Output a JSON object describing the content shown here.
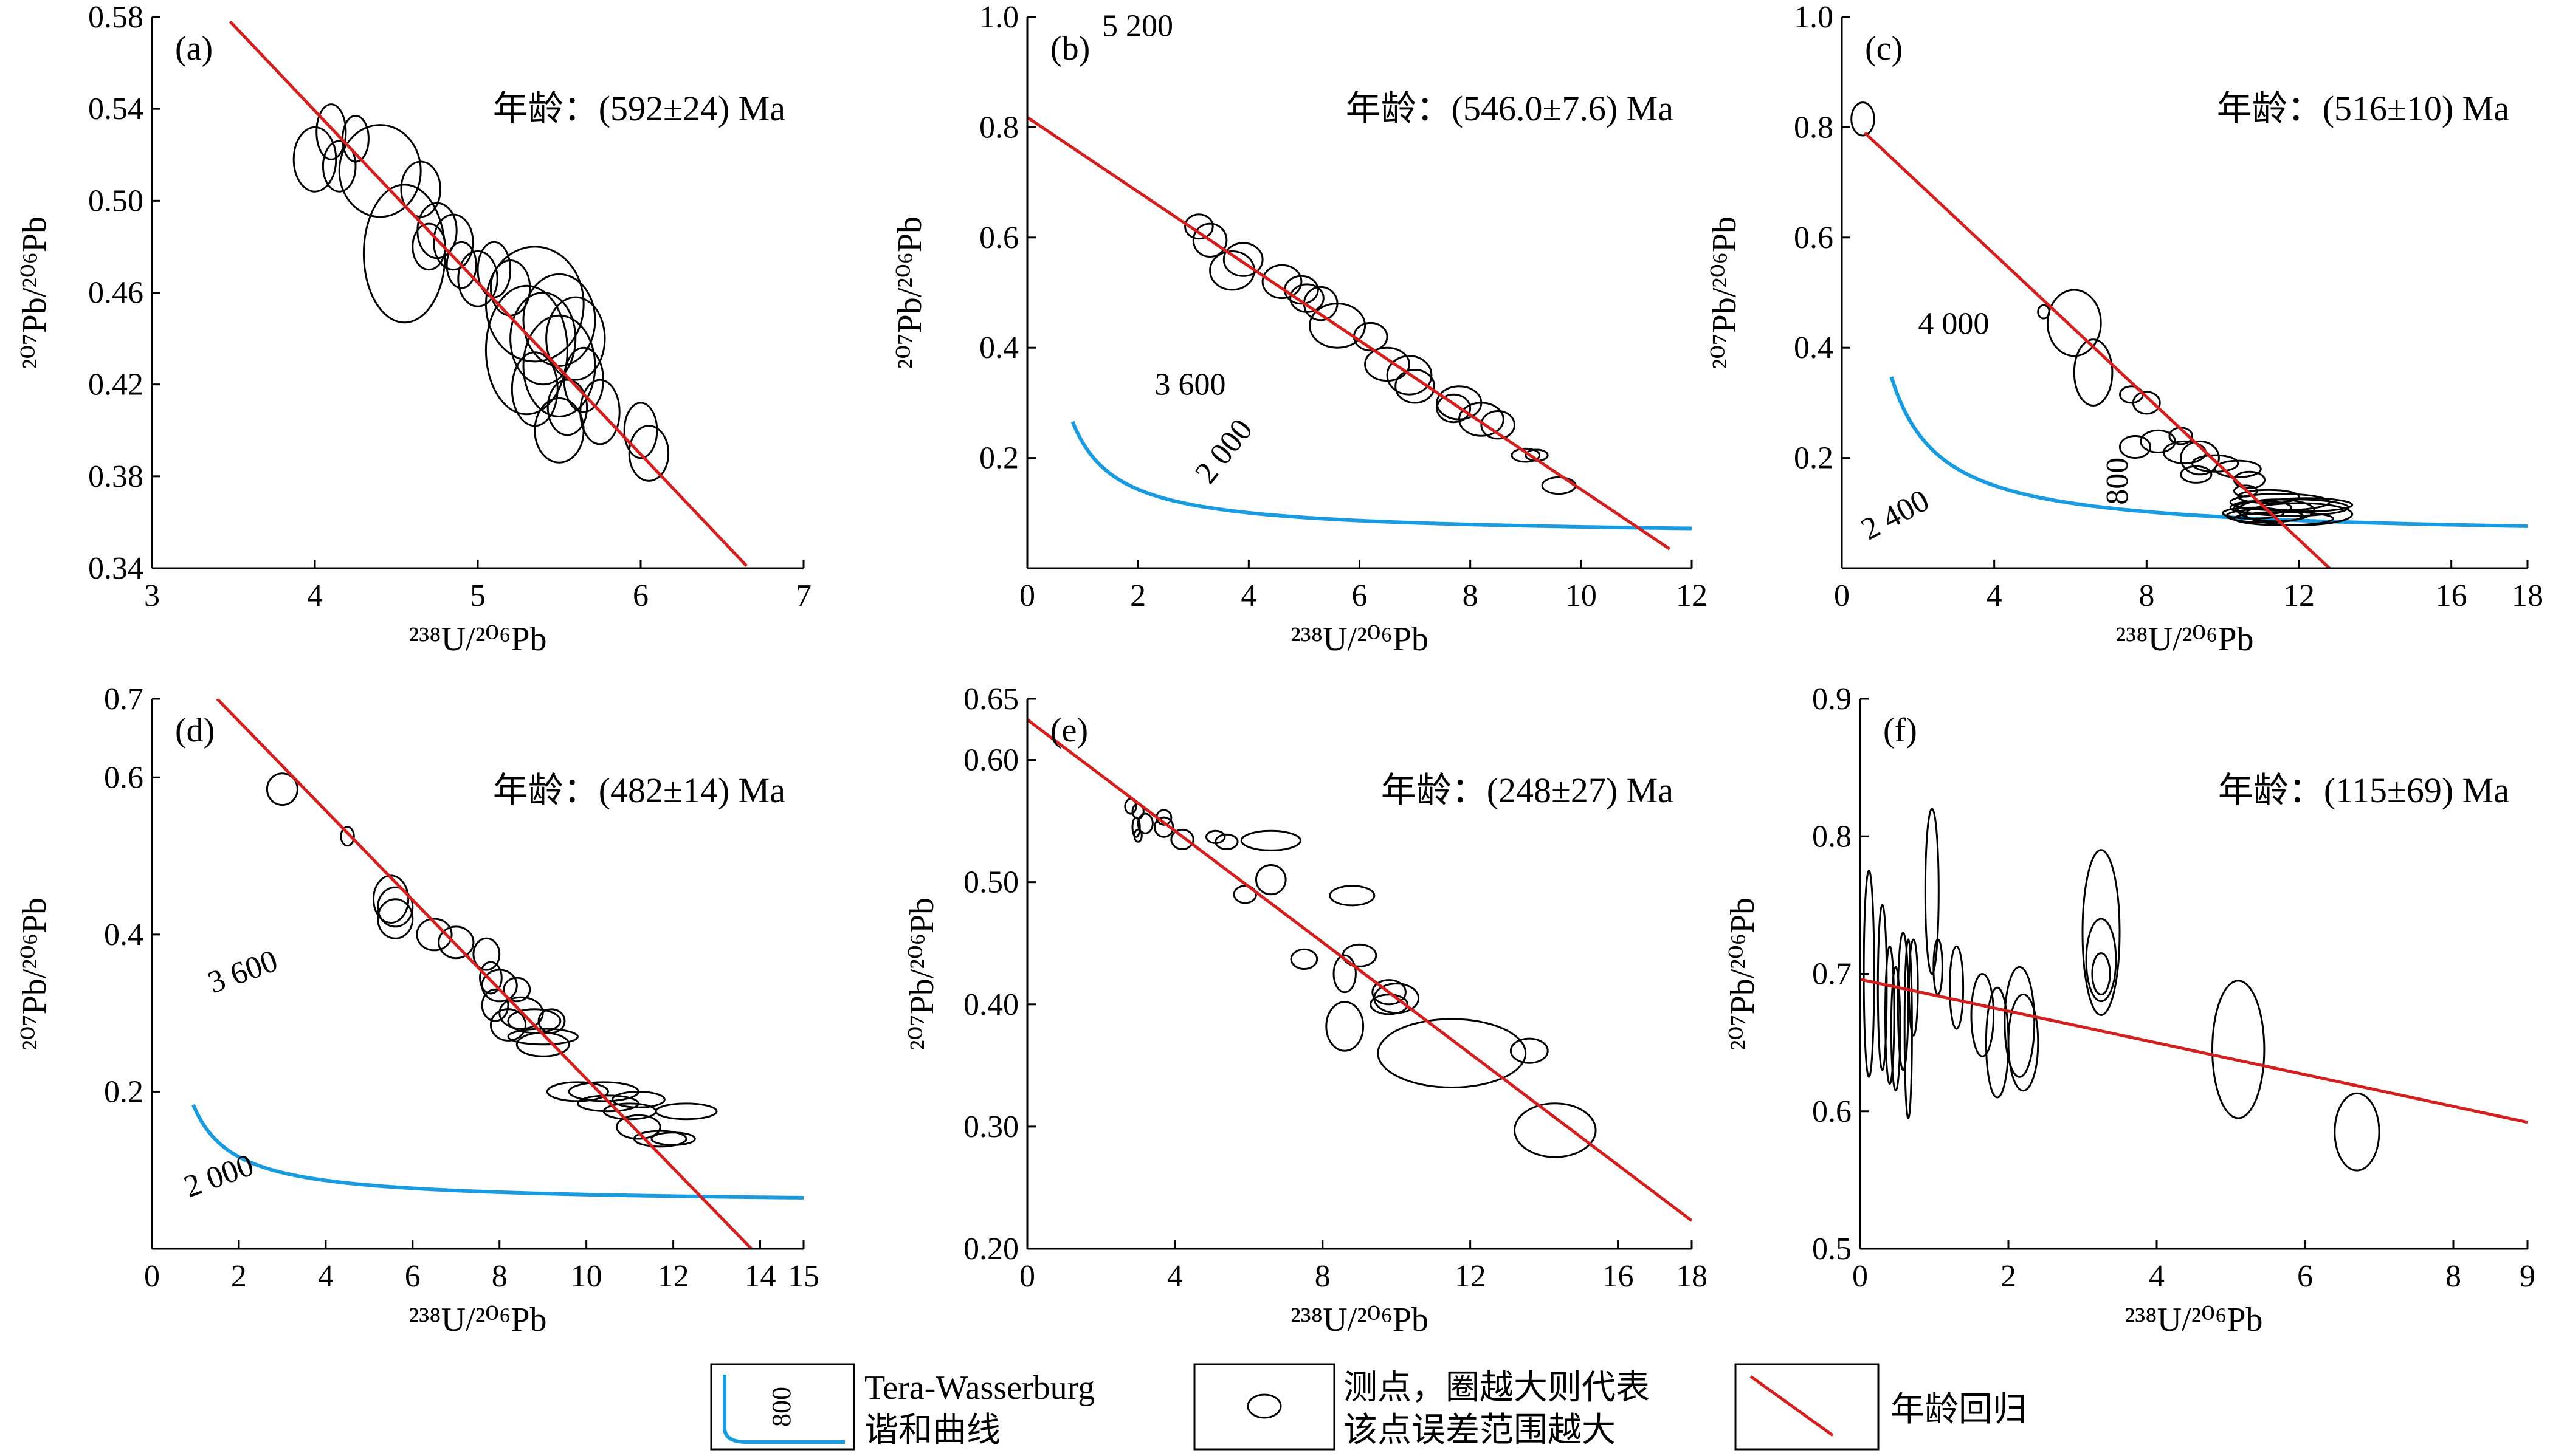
{
  "colors": {
    "concordia": "#1a9be0",
    "regression": "#d21f1f",
    "ellipse": "#000000"
  },
  "legend": {
    "concordia_line1": "Tera-Wasserburg",
    "concordia_line2": "谐和曲线",
    "concordia_sample_label": "800",
    "points_line1": "测点，圈越大则代表",
    "points_line2": "该点误差范围越大",
    "regression_label": "年龄回归"
  },
  "chart_data": [
    {
      "panel": "(a)",
      "type": "scatter",
      "age_label": "年龄：(592±24) Ma",
      "xlabel": "²³⁸U/²⁰⁶Pb",
      "ylabel": "²⁰⁷Pb/²⁰⁶Pb",
      "xlim": [
        3,
        7
      ],
      "ylim": [
        0.34,
        0.58
      ],
      "xticks": [
        "3",
        "4",
        "5",
        "6",
        "7"
      ],
      "yticks": [
        "0.34",
        "0.38",
        "0.42",
        "0.46",
        "0.50",
        "0.54",
        "0.58"
      ],
      "regression": [
        [
          3.48,
          0.578
        ],
        [
          6.65,
          0.341
        ]
      ],
      "concordia": null,
      "ellipses": [
        [
          4.1,
          0.53,
          0.09,
          0.012
        ],
        [
          4.25,
          0.527,
          0.08,
          0.01
        ],
        [
          4.0,
          0.518,
          0.13,
          0.014
        ],
        [
          4.15,
          0.515,
          0.1,
          0.011
        ],
        [
          4.4,
          0.513,
          0.25,
          0.02
        ],
        [
          4.65,
          0.505,
          0.12,
          0.012
        ],
        [
          4.75,
          0.487,
          0.12,
          0.012
        ],
        [
          4.55,
          0.477,
          0.25,
          0.03
        ],
        [
          4.7,
          0.48,
          0.1,
          0.01
        ],
        [
          4.85,
          0.482,
          0.12,
          0.012
        ],
        [
          4.9,
          0.472,
          0.09,
          0.01
        ],
        [
          5.0,
          0.466,
          0.12,
          0.012
        ],
        [
          5.1,
          0.47,
          0.1,
          0.012
        ],
        [
          5.2,
          0.462,
          0.12,
          0.012
        ],
        [
          5.35,
          0.455,
          0.3,
          0.025
        ],
        [
          5.5,
          0.448,
          0.22,
          0.02
        ],
        [
          5.3,
          0.435,
          0.25,
          0.028
        ],
        [
          5.4,
          0.44,
          0.2,
          0.02
        ],
        [
          5.5,
          0.428,
          0.22,
          0.022
        ],
        [
          5.6,
          0.44,
          0.18,
          0.018
        ],
        [
          5.65,
          0.422,
          0.12,
          0.014
        ],
        [
          5.35,
          0.418,
          0.14,
          0.016
        ],
        [
          5.55,
          0.41,
          0.12,
          0.012
        ],
        [
          5.75,
          0.408,
          0.12,
          0.014
        ],
        [
          5.5,
          0.4,
          0.15,
          0.014
        ],
        [
          6.0,
          0.4,
          0.1,
          0.012
        ],
        [
          6.05,
          0.39,
          0.12,
          0.012
        ]
      ],
      "concordia_labels": []
    },
    {
      "panel": "(b)",
      "type": "scatter",
      "age_label": "年龄：(546.0±7.6) Ma",
      "xlabel": "²³⁸U/²⁰⁶Pb",
      "ylabel": "²⁰⁷Pb/²⁰⁶Pb",
      "xlim": [
        0,
        12
      ],
      "ylim": [
        0.0,
        1.0
      ],
      "xticks": [
        "0",
        "2",
        "4",
        "6",
        "8",
        "10",
        "12"
      ],
      "yticks": [
        "0.2",
        "0.4",
        "0.6",
        "0.8",
        "1.0"
      ],
      "regression": [
        [
          0,
          0.818
        ],
        [
          11.6,
          0.035
        ]
      ],
      "concordia": {
        "asymptote": 0.058,
        "k": 0.17,
        "x_start": 0.82
      },
      "ellipses": [
        [
          3.1,
          0.62,
          0.25,
          0.022
        ],
        [
          3.3,
          0.595,
          0.3,
          0.03
        ],
        [
          3.9,
          0.56,
          0.35,
          0.03
        ],
        [
          3.7,
          0.54,
          0.4,
          0.035
        ],
        [
          4.6,
          0.52,
          0.35,
          0.03
        ],
        [
          4.95,
          0.505,
          0.3,
          0.025
        ],
        [
          5.05,
          0.49,
          0.3,
          0.025
        ],
        [
          5.3,
          0.48,
          0.3,
          0.03
        ],
        [
          5.6,
          0.44,
          0.5,
          0.04
        ],
        [
          6.2,
          0.42,
          0.3,
          0.025
        ],
        [
          6.5,
          0.37,
          0.4,
          0.03
        ],
        [
          6.9,
          0.35,
          0.4,
          0.035
        ],
        [
          7.0,
          0.33,
          0.35,
          0.03
        ],
        [
          7.8,
          0.3,
          0.4,
          0.03
        ],
        [
          7.7,
          0.29,
          0.3,
          0.025
        ],
        [
          8.2,
          0.27,
          0.4,
          0.03
        ],
        [
          8.5,
          0.26,
          0.3,
          0.025
        ],
        [
          9.0,
          0.205,
          0.25,
          0.012
        ],
        [
          9.2,
          0.205,
          0.2,
          0.01
        ],
        [
          9.6,
          0.15,
          0.3,
          0.015
        ]
      ],
      "concordia_labels": [
        {
          "text": "5 200",
          "x": 1.35,
          "y": 0.965,
          "angle": 0
        },
        {
          "text": "3 600",
          "x": 2.3,
          "y": 0.315,
          "angle": 0
        },
        {
          "text": "2 000",
          "x": 3.3,
          "y": 0.15,
          "angle": -52
        }
      ]
    },
    {
      "panel": "(c)",
      "type": "scatter",
      "age_label": "年龄：(516±10) Ma",
      "xlabel": "²³⁸U/²⁰⁶Pb",
      "ylabel": "²⁰⁷Pb/²⁰⁶Pb",
      "xlim": [
        0,
        18
      ],
      "ylim": [
        0.0,
        1.0
      ],
      "xticks": [
        "0",
        "4",
        "8",
        "12",
        "16",
        "18"
      ],
      "yticks": [
        "0.2",
        "0.4",
        "0.6",
        "0.8",
        "1.0"
      ],
      "regression": [
        [
          0.6,
          0.79
        ],
        [
          12.8,
          0.0
        ]
      ],
      "concordia": {
        "asymptote": 0.055,
        "k": 0.38,
        "x_start": 1.3
      },
      "ellipses": [
        [
          0.55,
          0.815,
          0.3,
          0.03
        ],
        [
          5.3,
          0.465,
          0.15,
          0.012
        ],
        [
          6.1,
          0.445,
          0.7,
          0.06
        ],
        [
          6.6,
          0.355,
          0.5,
          0.06
        ],
        [
          7.6,
          0.315,
          0.3,
          0.015
        ],
        [
          8.0,
          0.3,
          0.35,
          0.02
        ],
        [
          7.7,
          0.22,
          0.4,
          0.02
        ],
        [
          8.3,
          0.23,
          0.45,
          0.02
        ],
        [
          8.9,
          0.24,
          0.3,
          0.015
        ],
        [
          9.0,
          0.21,
          0.55,
          0.02
        ],
        [
          9.4,
          0.2,
          0.5,
          0.03
        ],
        [
          9.3,
          0.17,
          0.4,
          0.015
        ],
        [
          9.8,
          0.19,
          0.6,
          0.015
        ],
        [
          10.4,
          0.18,
          0.6,
          0.015
        ],
        [
          10.7,
          0.16,
          0.4,
          0.015
        ],
        [
          10.6,
          0.14,
          0.3,
          0.01
        ],
        [
          11.2,
          0.13,
          0.8,
          0.012
        ],
        [
          11.5,
          0.12,
          1.3,
          0.015
        ],
        [
          11.0,
          0.11,
          0.8,
          0.012
        ],
        [
          11.8,
          0.11,
          1.5,
          0.015
        ],
        [
          12.2,
          0.115,
          1.2,
          0.012
        ],
        [
          11.1,
          0.095,
          1.0,
          0.012
        ],
        [
          11.6,
          0.09,
          1.3,
          0.012
        ],
        [
          10.8,
          0.1,
          0.8,
          0.01
        ],
        [
          11.4,
          0.105,
          1.0,
          0.02
        ],
        [
          12.0,
          0.098,
          1.4,
          0.02
        ]
      ],
      "concordia_labels": [
        {
          "text": "4 000",
          "x": 2.0,
          "y": 0.425,
          "angle": 0
        },
        {
          "text": "2 400",
          "x": 0.7,
          "y": 0.05,
          "angle": -28
        },
        {
          "text": "800",
          "x": 7.5,
          "y": 0.115,
          "angle": -90
        }
      ]
    },
    {
      "panel": "(d)",
      "type": "scatter",
      "age_label": "年龄：(482±14) Ma",
      "xlabel": "²³⁸U/²⁰⁶Pb",
      "ylabel": "²⁰⁷Pb/²⁰⁶Pb",
      "xlim": [
        0,
        15
      ],
      "ylim": [
        0.0,
        0.7
      ],
      "xticks": [
        "0",
        "2",
        "4",
        "6",
        "8",
        "10",
        "12",
        "14",
        "15"
      ],
      "yticks": [
        "0.2",
        "0.4",
        "0.6",
        "0.7"
      ],
      "regression": [
        [
          1.5,
          0.7
        ],
        [
          13.8,
          0.0
        ]
      ],
      "concordia": {
        "asymptote": 0.057,
        "k": 0.12,
        "x_start": 0.95
      },
      "ellipses": [
        [
          3.0,
          0.585,
          0.35,
          0.02
        ],
        [
          4.5,
          0.525,
          0.15,
          0.012
        ],
        [
          5.5,
          0.445,
          0.4,
          0.03
        ],
        [
          5.6,
          0.435,
          0.4,
          0.025
        ],
        [
          5.6,
          0.42,
          0.4,
          0.025
        ],
        [
          6.5,
          0.4,
          0.4,
          0.02
        ],
        [
          7.0,
          0.39,
          0.4,
          0.02
        ],
        [
          7.7,
          0.375,
          0.3,
          0.02
        ],
        [
          7.8,
          0.345,
          0.25,
          0.02
        ],
        [
          8.0,
          0.335,
          0.4,
          0.02
        ],
        [
          8.4,
          0.33,
          0.3,
          0.015
        ],
        [
          7.9,
          0.31,
          0.3,
          0.02
        ],
        [
          8.5,
          0.3,
          0.5,
          0.02
        ],
        [
          8.8,
          0.29,
          0.6,
          0.015
        ],
        [
          9.2,
          0.29,
          0.3,
          0.015
        ],
        [
          9.0,
          0.27,
          0.8,
          0.01
        ],
        [
          8.2,
          0.285,
          0.4,
          0.02
        ],
        [
          9.0,
          0.26,
          0.6,
          0.015
        ],
        [
          9.8,
          0.2,
          0.7,
          0.012
        ],
        [
          10.4,
          0.2,
          0.8,
          0.012
        ],
        [
          10.5,
          0.185,
          0.7,
          0.01
        ],
        [
          11.2,
          0.19,
          0.6,
          0.01
        ],
        [
          11.0,
          0.175,
          0.6,
          0.01
        ],
        [
          12.3,
          0.175,
          0.7,
          0.01
        ],
        [
          11.2,
          0.155,
          0.5,
          0.015
        ],
        [
          11.7,
          0.14,
          0.6,
          0.01
        ],
        [
          12.0,
          0.14,
          0.5,
          0.008
        ]
      ],
      "concordia_labels": [
        {
          "text": "3 600",
          "x": 1.4,
          "y": 0.325,
          "angle": -20
        },
        {
          "text": "2 000",
          "x": 0.85,
          "y": 0.065,
          "angle": -20
        }
      ]
    },
    {
      "panel": "(e)",
      "type": "scatter",
      "age_label": "年龄：(248±27) Ma",
      "xlabel": "²³⁸U/²⁰⁶Pb",
      "ylabel": "²⁰⁷Pb/²⁰⁶Pb",
      "xlim": [
        0,
        18
      ],
      "ylim": [
        0.2,
        0.65
      ],
      "xticks": [
        "0",
        "4",
        "8",
        "12",
        "16",
        "18"
      ],
      "yticks": [
        "0.20",
        "0.30",
        "0.40",
        "0.50",
        "0.60",
        "0.65"
      ],
      "regression": [
        [
          0,
          0.633
        ],
        [
          18,
          0.223
        ]
      ],
      "concordia": null,
      "ellipses": [
        [
          2.8,
          0.562,
          0.15,
          0.006
        ],
        [
          3.0,
          0.558,
          0.15,
          0.006
        ],
        [
          2.95,
          0.545,
          0.1,
          0.008
        ],
        [
          3.2,
          0.548,
          0.2,
          0.008
        ],
        [
          3.0,
          0.538,
          0.1,
          0.005
        ],
        [
          3.7,
          0.553,
          0.2,
          0.006
        ],
        [
          3.7,
          0.545,
          0.25,
          0.008
        ],
        [
          4.2,
          0.535,
          0.3,
          0.008
        ],
        [
          5.1,
          0.537,
          0.25,
          0.005
        ],
        [
          5.4,
          0.533,
          0.3,
          0.006
        ],
        [
          6.6,
          0.534,
          0.8,
          0.008
        ],
        [
          6.6,
          0.502,
          0.4,
          0.012
        ],
        [
          5.9,
          0.49,
          0.3,
          0.007
        ],
        [
          8.8,
          0.489,
          0.6,
          0.008
        ],
        [
          7.5,
          0.437,
          0.35,
          0.008
        ],
        [
          9.0,
          0.44,
          0.45,
          0.009
        ],
        [
          8.6,
          0.425,
          0.3,
          0.015
        ],
        [
          9.8,
          0.41,
          0.45,
          0.01
        ],
        [
          10.0,
          0.405,
          0.6,
          0.012
        ],
        [
          9.8,
          0.4,
          0.5,
          0.008
        ],
        [
          8.6,
          0.382,
          0.5,
          0.02
        ],
        [
          11.5,
          0.36,
          2.0,
          0.028
        ],
        [
          13.6,
          0.362,
          0.5,
          0.01
        ],
        [
          14.3,
          0.297,
          1.1,
          0.022
        ]
      ],
      "concordia_labels": []
    },
    {
      "panel": "(f)",
      "type": "scatter",
      "age_label": "年龄：(115±69) Ma",
      "xlabel": "²³⁸U/²⁰⁶Pb",
      "ylabel": "²⁰⁷Pb/²⁰⁶Pb",
      "xlim": [
        0,
        9
      ],
      "ylim": [
        0.5,
        0.9
      ],
      "xticks": [
        "0",
        "2",
        "4",
        "6",
        "8",
        "9"
      ],
      "yticks": [
        "0.5",
        "0.6",
        "0.7",
        "0.8",
        "0.9"
      ],
      "regression": [
        [
          0,
          0.696
        ],
        [
          9,
          0.592
        ]
      ],
      "concordia": null,
      "ellipses": [
        [
          0.12,
          0.7,
          0.07,
          0.075
        ],
        [
          0.3,
          0.69,
          0.06,
          0.06
        ],
        [
          0.4,
          0.67,
          0.06,
          0.05
        ],
        [
          0.48,
          0.66,
          0.06,
          0.045
        ],
        [
          0.58,
          0.68,
          0.07,
          0.05
        ],
        [
          0.65,
          0.66,
          0.05,
          0.065
        ],
        [
          0.72,
          0.69,
          0.06,
          0.035
        ],
        [
          0.97,
          0.76,
          0.09,
          0.06
        ],
        [
          1.05,
          0.705,
          0.06,
          0.02
        ],
        [
          1.3,
          0.69,
          0.09,
          0.03
        ],
        [
          1.65,
          0.67,
          0.15,
          0.03
        ],
        [
          1.85,
          0.65,
          0.15,
          0.04
        ],
        [
          2.15,
          0.665,
          0.2,
          0.04
        ],
        [
          2.2,
          0.65,
          0.2,
          0.035
        ],
        [
          3.25,
          0.73,
          0.25,
          0.06
        ],
        [
          3.25,
          0.71,
          0.2,
          0.03
        ],
        [
          3.25,
          0.7,
          0.12,
          0.015
        ],
        [
          5.1,
          0.645,
          0.35,
          0.05
        ],
        [
          6.7,
          0.585,
          0.3,
          0.028
        ]
      ],
      "concordia_labels": []
    }
  ]
}
